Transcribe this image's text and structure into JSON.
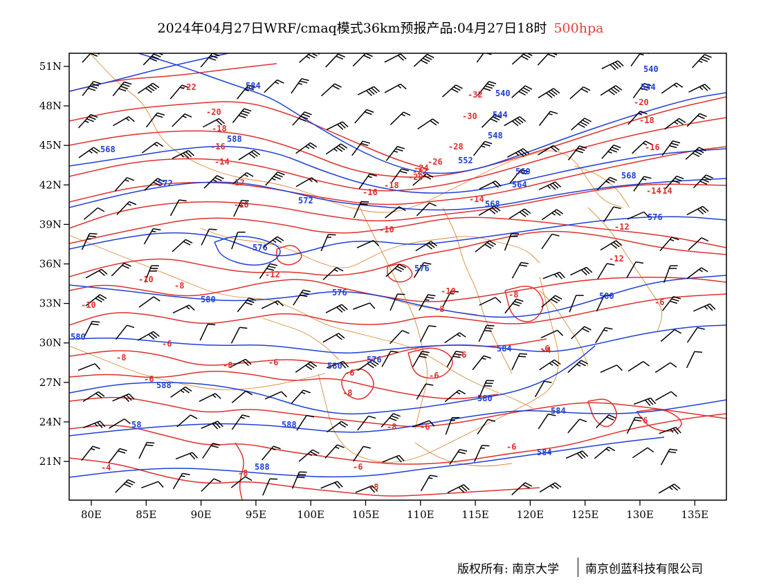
{
  "header": {
    "title": "2024年04月27日WRF/cmaq模式36km预报产品:04月27日18时",
    "level": "500hpa"
  },
  "axes": {
    "lon_ticks": [
      "80E",
      "85E",
      "90E",
      "95E",
      "100E",
      "105E",
      "110E",
      "115E",
      "120E",
      "125E",
      "130E",
      "135E"
    ],
    "lat_ticks": [
      "51N",
      "48N",
      "45N",
      "42N",
      "39N",
      "36N",
      "33N",
      "30N",
      "27N",
      "24N",
      "21N"
    ]
  },
  "colors": {
    "temperature": "#e0302c",
    "height": "#1f3fd8",
    "boundary": "#d9893a",
    "barb": "#000000"
  },
  "labels": {
    "temp": [
      "-22",
      "-20",
      "-18",
      "-16",
      "-14",
      "-32",
      "-30",
      "-28",
      "-26",
      "-24",
      "-22",
      "-20",
      "-18",
      "-16",
      "-14",
      "-12",
      "-10",
      "-20",
      "-18",
      "-16",
      "-14",
      "-14",
      "-12",
      "-10",
      "-12",
      "-10",
      "-8",
      "-8",
      "-6",
      "-10",
      "-8",
      "-12",
      "-10",
      "-8",
      "-6",
      "-6",
      "-8",
      "-6",
      "-6",
      "-8",
      "-6",
      "-6",
      "-4",
      "-6",
      "-8",
      "-6",
      "-6",
      "-6",
      "-4",
      "-8",
      "-6",
      "-8"
    ],
    "height": [
      "584",
      "540",
      "544",
      "540",
      "544",
      "548",
      "588",
      "568",
      "552",
      "560",
      "564",
      "568",
      "572",
      "572",
      "568",
      "576",
      "576",
      "576",
      "576",
      "580",
      "580",
      "580",
      "580",
      "576",
      "584",
      "588",
      "580",
      "58",
      "584",
      "588",
      "588",
      "584"
    ]
  },
  "footer": {
    "copyright": "版权所有: 南京大学",
    "company": "南京创蓝科技有限公司"
  }
}
